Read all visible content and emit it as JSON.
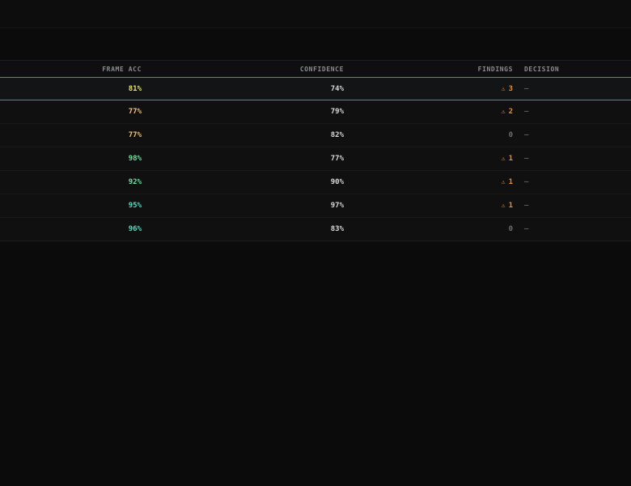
{
  "colors": {
    "background": "#0b0b0c",
    "accent_line": "#5b7fa3",
    "warn": "#e0903a",
    "acc_yellow": "#e8e07a",
    "acc_orange": "#f0c080",
    "acc_green": "#6fe0a0",
    "acc_teal": "#5fd8c0"
  },
  "table": {
    "headers": {
      "frame_acc": "FRAME ACC",
      "confidence": "CONFIDENCE",
      "findings": "FINDINGS",
      "decision": "DECISION"
    },
    "rows": [
      {
        "frame_acc": "81%",
        "acc_color": "#e8e07a",
        "confidence": "74%",
        "findings_icon": "⚠",
        "findings": "3",
        "has_findings": true,
        "decision": "—"
      },
      {
        "frame_acc": "77%",
        "acc_color": "#f0c080",
        "confidence": "79%",
        "findings_icon": "⚠",
        "findings": "2",
        "has_findings": true,
        "decision": "—"
      },
      {
        "frame_acc": "77%",
        "acc_color": "#f0c080",
        "confidence": "82%",
        "findings_icon": "",
        "findings": "0",
        "has_findings": false,
        "decision": "—"
      },
      {
        "frame_acc": "98%",
        "acc_color": "#6fe0a0",
        "confidence": "77%",
        "findings_icon": "⚠",
        "findings": "1",
        "has_findings": true,
        "decision": "—"
      },
      {
        "frame_acc": "92%",
        "acc_color": "#6fe0a0",
        "confidence": "90%",
        "findings_icon": "⚠",
        "findings": "1",
        "has_findings": true,
        "decision": "—"
      },
      {
        "frame_acc": "95%",
        "acc_color": "#5fd8c0",
        "confidence": "97%",
        "findings_icon": "⚠",
        "findings": "1",
        "has_findings": true,
        "decision": "—"
      },
      {
        "frame_acc": "96%",
        "acc_color": "#5fd8c0",
        "confidence": "83%",
        "findings_icon": "",
        "findings": "0",
        "has_findings": false,
        "decision": "—"
      }
    ]
  }
}
